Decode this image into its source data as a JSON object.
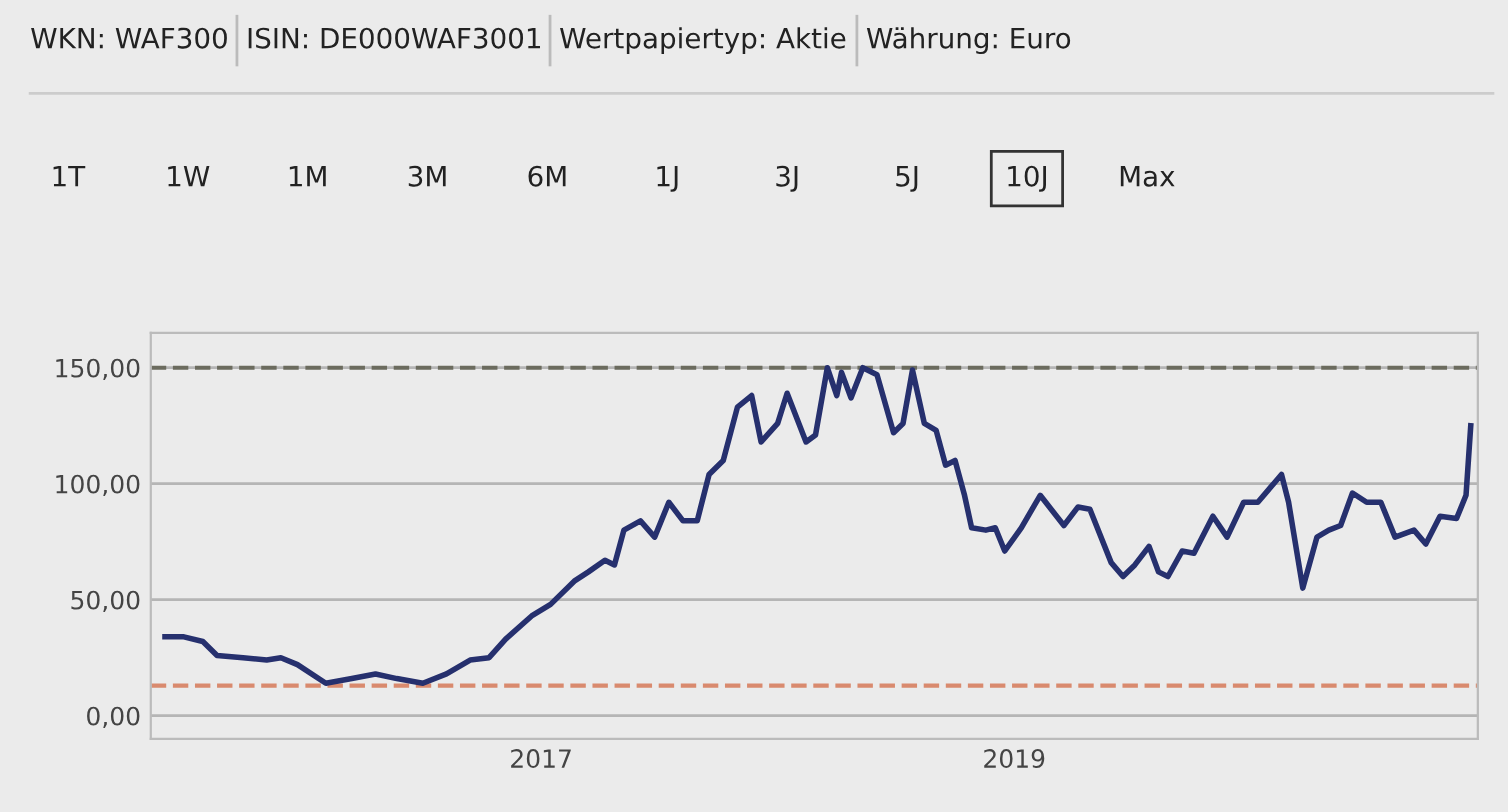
{
  "chart_data": {
    "type": "line",
    "annotations": [
      "WKN: WAF300",
      "ISIN: DE000WAF3001",
      "Wertpapiertyp: Aktie",
      "Währung: Euro",
      "1T",
      "1W",
      "1M",
      "3M",
      "6M",
      "1J",
      "3J",
      "5J",
      "10J",
      "Max"
    ],
    "x": [
      2015.41,
      2015.49,
      2015.57,
      2015.63,
      2015.74,
      2015.84,
      2015.9,
      2015.97,
      2016.09,
      2016.2,
      2016.3,
      2016.39,
      2016.5,
      2016.6,
      2016.7,
      2016.78,
      2016.85,
      2016.96,
      2017.04,
      2017.14,
      2017.2,
      2017.27,
      2017.31,
      2017.35,
      2017.42,
      2017.48,
      2017.54,
      2017.6,
      2017.66,
      2017.71,
      2017.77,
      2017.83,
      2017.89,
      2017.93,
      2018.0,
      2018.04,
      2018.12,
      2018.16,
      2018.21,
      2018.25,
      2018.27,
      2018.31,
      2018.36,
      2018.42,
      2018.49,
      2018.53,
      2018.57,
      2018.62,
      2018.67,
      2018.71,
      2018.75,
      2018.79,
      2018.82,
      2018.88,
      2018.92,
      2018.96,
      2019.03,
      2019.11,
      2019.21,
      2019.27,
      2019.32,
      2019.41,
      2019.46,
      2019.51,
      2019.57,
      2019.61,
      2019.65,
      2019.71,
      2019.76,
      2019.84,
      2019.9,
      2019.97,
      2020.03,
      2020.13,
      2020.16,
      2020.22,
      2020.28,
      2020.33,
      2020.38,
      2020.43,
      2020.49,
      2020.55,
      2020.61,
      2020.69,
      2020.74,
      2020.8,
      2020.87,
      2020.91,
      2020.93
    ],
    "series": [
      {
        "color": "#26306e",
        "values": [
          34,
          34,
          32,
          26,
          25,
          24,
          25,
          22,
          14,
          16,
          18,
          16,
          14,
          18,
          24,
          25,
          33,
          43,
          48,
          58,
          62,
          67,
          65,
          80,
          84,
          77,
          92,
          84,
          84,
          104,
          110,
          133,
          138,
          118,
          126,
          139,
          118,
          121,
          150,
          138,
          148,
          137,
          150,
          147,
          122,
          126,
          149,
          126,
          123,
          108,
          110,
          95,
          81,
          80,
          81,
          71,
          81,
          95,
          82,
          90,
          89,
          66,
          60,
          65,
          73,
          62,
          60,
          71,
          70,
          86,
          77,
          92,
          92,
          104,
          92,
          55,
          77,
          80,
          82,
          96,
          92,
          92,
          77,
          80,
          74,
          86,
          85,
          95,
          125
        ]
      }
    ],
    "xlim": [
      2015.35,
      2020.96
    ],
    "ylim": [
      -10,
      165
    ],
    "xticks": [
      2017,
      2019
    ],
    "yticks": [
      {
        "value": 0,
        "label": "0,00"
      },
      {
        "value": 50,
        "label": "50,00"
      },
      {
        "value": 100,
        "label": "100,00"
      },
      {
        "value": 150,
        "label": "150,00"
      }
    ],
    "ref_lines": [
      {
        "axis": "y",
        "value": 150,
        "color": "#6b6b5e",
        "line_style": "dashed"
      },
      {
        "axis": "y",
        "value": 13,
        "color": "#d98a6e",
        "line_style": "dashed"
      }
    ],
    "grid": "y",
    "legend": false,
    "marker": "none",
    "line_style": "solid"
  }
}
